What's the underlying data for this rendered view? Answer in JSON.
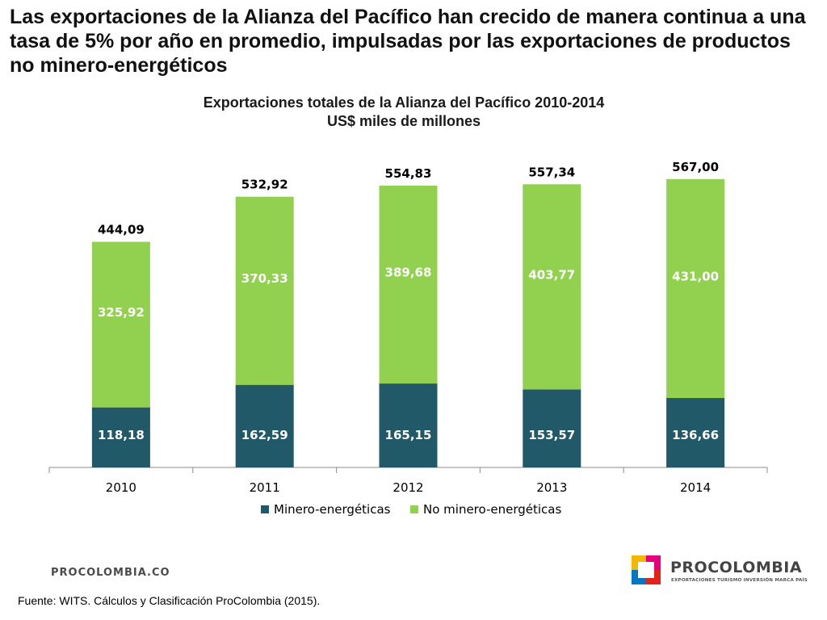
{
  "slide": {
    "headline": "Las exportaciones de la Alianza del Pacífico han crecido de manera continua a una tasa de 5% por año en promedio, impulsadas por las exportaciones de productos no minero-energéticos",
    "footer_brand": "PROCOLOMBIA.CO",
    "source": "Fuente: WITS. Cálculos y Clasificación ProColombia (2015).",
    "logo": {
      "name": "PROCOLOMBIA",
      "tagline": "EXPORTACIONES TURISMO INVERSIÓN MARCA PAÍS",
      "colors": [
        "#f5b800",
        "#e5007e",
        "#0079c1",
        "#e2231a"
      ]
    }
  },
  "chart_data": {
    "type": "bar",
    "stacked": true,
    "title": "Exportaciones totales de la Alianza del Pacífico 2010-2014",
    "subtitle": "US$ miles de millones",
    "categories": [
      "2010",
      "2011",
      "2012",
      "2013",
      "2014"
    ],
    "series": [
      {
        "name": "Minero-energéticas",
        "color": "#215968",
        "values": [
          118.18,
          162.59,
          165.15,
          153.57,
          136.66
        ],
        "labels": [
          "118,18",
          "162,59",
          "165,15",
          "153,57",
          "136,66"
        ]
      },
      {
        "name": "No minero-energéticas",
        "color": "#92d050",
        "values": [
          325.92,
          370.33,
          389.68,
          403.77,
          431.0
        ],
        "labels": [
          "325,92",
          "370,33",
          "389,68",
          "403,77",
          "431,00"
        ]
      }
    ],
    "totals": [
      444.09,
      532.92,
      554.83,
      557.34,
      567.0
    ],
    "total_labels": [
      "444,09",
      "532,92",
      "554,83",
      "557,34",
      "567,00"
    ],
    "ylim": [
      0,
      650
    ],
    "grid": false,
    "legend_position": "bottom"
  }
}
